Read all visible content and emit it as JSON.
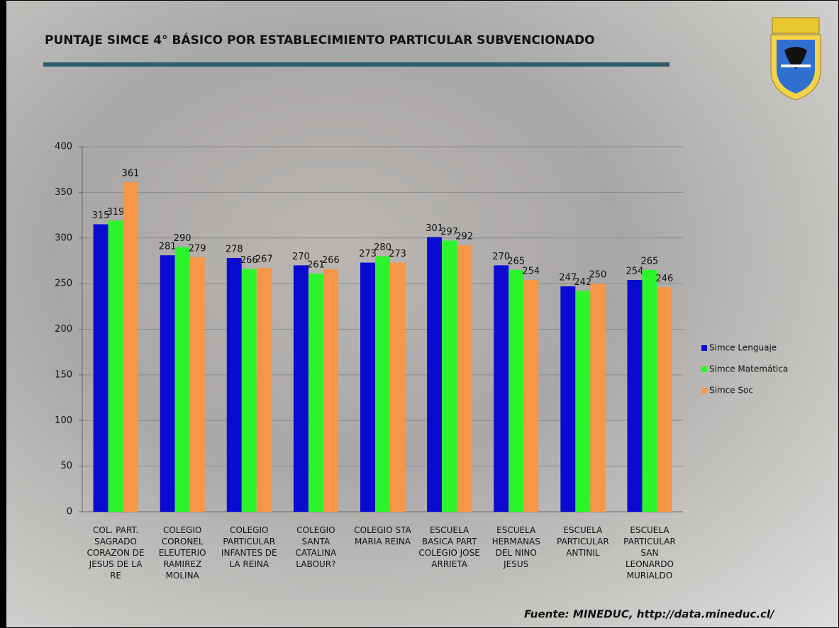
{
  "chart_data": {
    "type": "bar",
    "title": "PUNTAJE SIMCE 4° BÁSICO POR ESTABLECIMIENTO PARTICULAR SUBVENCIONADO",
    "source": "Fuente: MINEDUC, http://data.mineduc.cl/",
    "categories": [
      "COL. PART. SAGRADO CORAZON DE JESUS DE LA RE",
      "COLEGIO CORONEL ELEUTERIO RAMIREZ MOLINA",
      "COLEGIO PARTICULAR INFANTES DE LA REINA",
      "COLEGIO SANTA CATALINA LABOUR?",
      "COLEGIO STA MARIA REINA",
      "ESCUELA BASICA PART COLEGIO JOSE ARRIETA",
      "ESCUELA HERMANAS DEL NINO JESUS",
      "ESCUELA PARTICULAR ANTINIL",
      "ESCUELA PARTICULAR SAN LEONARDO MURIALDO"
    ],
    "series": [
      {
        "name": "Simce Lenguaje",
        "color": "#0a0ad0",
        "values": [
          315,
          281,
          278,
          270,
          273,
          301,
          270,
          247,
          254
        ]
      },
      {
        "name": "Simce Matemática",
        "color": "#2cf52c",
        "values": [
          319,
          290,
          266,
          261,
          280,
          297,
          265,
          242,
          265
        ]
      },
      {
        "name": "Simce Soc",
        "color": "#f79646",
        "values": [
          361,
          279,
          267,
          266,
          273,
          292,
          254,
          250,
          246
        ]
      }
    ],
    "ylim": [
      0,
      400
    ],
    "yticks": [
      0,
      50,
      100,
      150,
      200,
      250,
      300,
      350,
      400
    ],
    "grid": true,
    "legend": "right"
  }
}
